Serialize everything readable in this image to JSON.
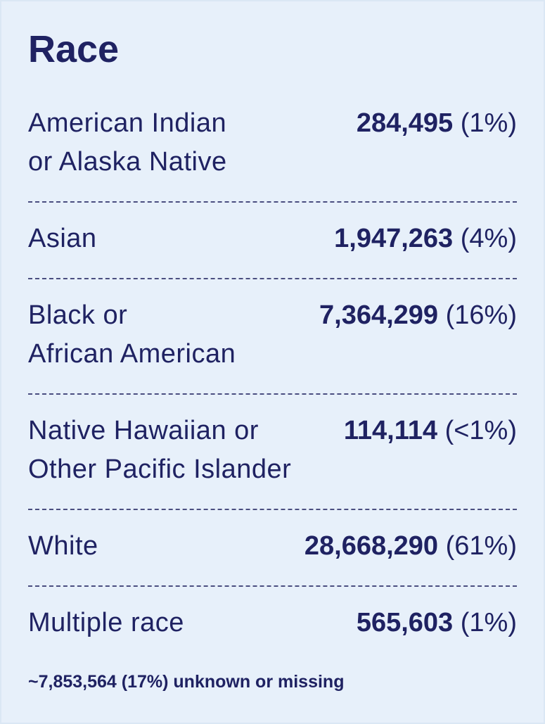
{
  "title": "Race",
  "rows": [
    {
      "label": [
        "American Indian",
        "or Alaska Native"
      ],
      "count": "284,495",
      "percent": "(1%)"
    },
    {
      "label": [
        "Asian"
      ],
      "count": "1,947,263",
      "percent": "(4%)"
    },
    {
      "label": [
        "Black or",
        "African American"
      ],
      "count": "7,364,299",
      "percent": "(16%)"
    },
    {
      "label": [
        "Native Hawaiian or",
        "Other Pacific Islander"
      ],
      "count": "114,114",
      "percent": "(<1%)"
    },
    {
      "label": [
        "White"
      ],
      "count": "28,668,290",
      "percent": "(61%)"
    },
    {
      "label": [
        "Multiple race"
      ],
      "count": "565,603",
      "percent": "(1%)"
    }
  ],
  "footnote": "~7,853,564 (17%) unknown or missing"
}
